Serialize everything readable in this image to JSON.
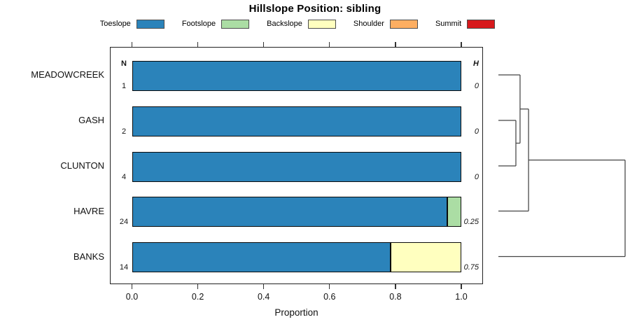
{
  "title": "Hillslope Position: sibling",
  "legend": {
    "items": [
      {
        "label": "Toeslope",
        "color": "#2b83ba"
      },
      {
        "label": "Footslope",
        "color": "#abdda4"
      },
      {
        "label": "Backslope",
        "color": "#ffffbf"
      },
      {
        "label": "Shoulder",
        "color": "#fdae61"
      },
      {
        "label": "Summit",
        "color": "#d7191c"
      }
    ]
  },
  "columns": {
    "n_header": "N",
    "h_header": "H"
  },
  "axis": {
    "xlabel": "Proportion",
    "tick_labels": [
      "0.0",
      "0.2",
      "0.4",
      "0.6",
      "0.8",
      "1.0"
    ],
    "tick_values": [
      0,
      0.2,
      0.4,
      0.6,
      0.8,
      1.0
    ]
  },
  "chart_data": {
    "type": "bar",
    "stacked": true,
    "orientation": "horizontal",
    "title": "Hillslope Position: sibling",
    "xlabel": "Proportion",
    "xlim": [
      0,
      1
    ],
    "legend_position": "top",
    "categories": [
      "MEADOWCREEK",
      "GASH",
      "CLUNTON",
      "HAVRE",
      "BANKS"
    ],
    "n_values": [
      "1",
      "2",
      "4",
      "24",
      "14"
    ],
    "h_values": [
      "0",
      "0",
      "0",
      "0.25",
      "0.75"
    ],
    "series": [
      {
        "name": "Toeslope",
        "color": "#2b83ba",
        "values": [
          1,
          1,
          1,
          0.9583,
          0.7857
        ]
      },
      {
        "name": "Footslope",
        "color": "#abdda4",
        "values": [
          0,
          0,
          0,
          0.0417,
          0
        ]
      },
      {
        "name": "Backslope",
        "color": "#ffffbf",
        "values": [
          0,
          0,
          0,
          0,
          0.2143
        ]
      },
      {
        "name": "Shoulder",
        "color": "#fdae61",
        "values": [
          0,
          0,
          0,
          0,
          0
        ]
      },
      {
        "name": "Summit",
        "color": "#d7191c",
        "values": [
          0,
          0,
          0,
          0,
          0
        ]
      }
    ],
    "dendrogram": {
      "leaves": [
        "MEADOWCREEK",
        "GASH",
        "CLUNTON",
        "HAVRE",
        "BANKS"
      ],
      "merges": [
        {
          "a": "GASH",
          "b": "CLUNTON",
          "height": 0.138
        },
        {
          "a": "MEADOWCREEK",
          "b": "merge0",
          "height": 0.171
        },
        {
          "a": "merge1",
          "b": "HAVRE",
          "height": 0.238
        },
        {
          "a": "merge2",
          "b": "BANKS",
          "height": 1.0
        }
      ]
    }
  }
}
